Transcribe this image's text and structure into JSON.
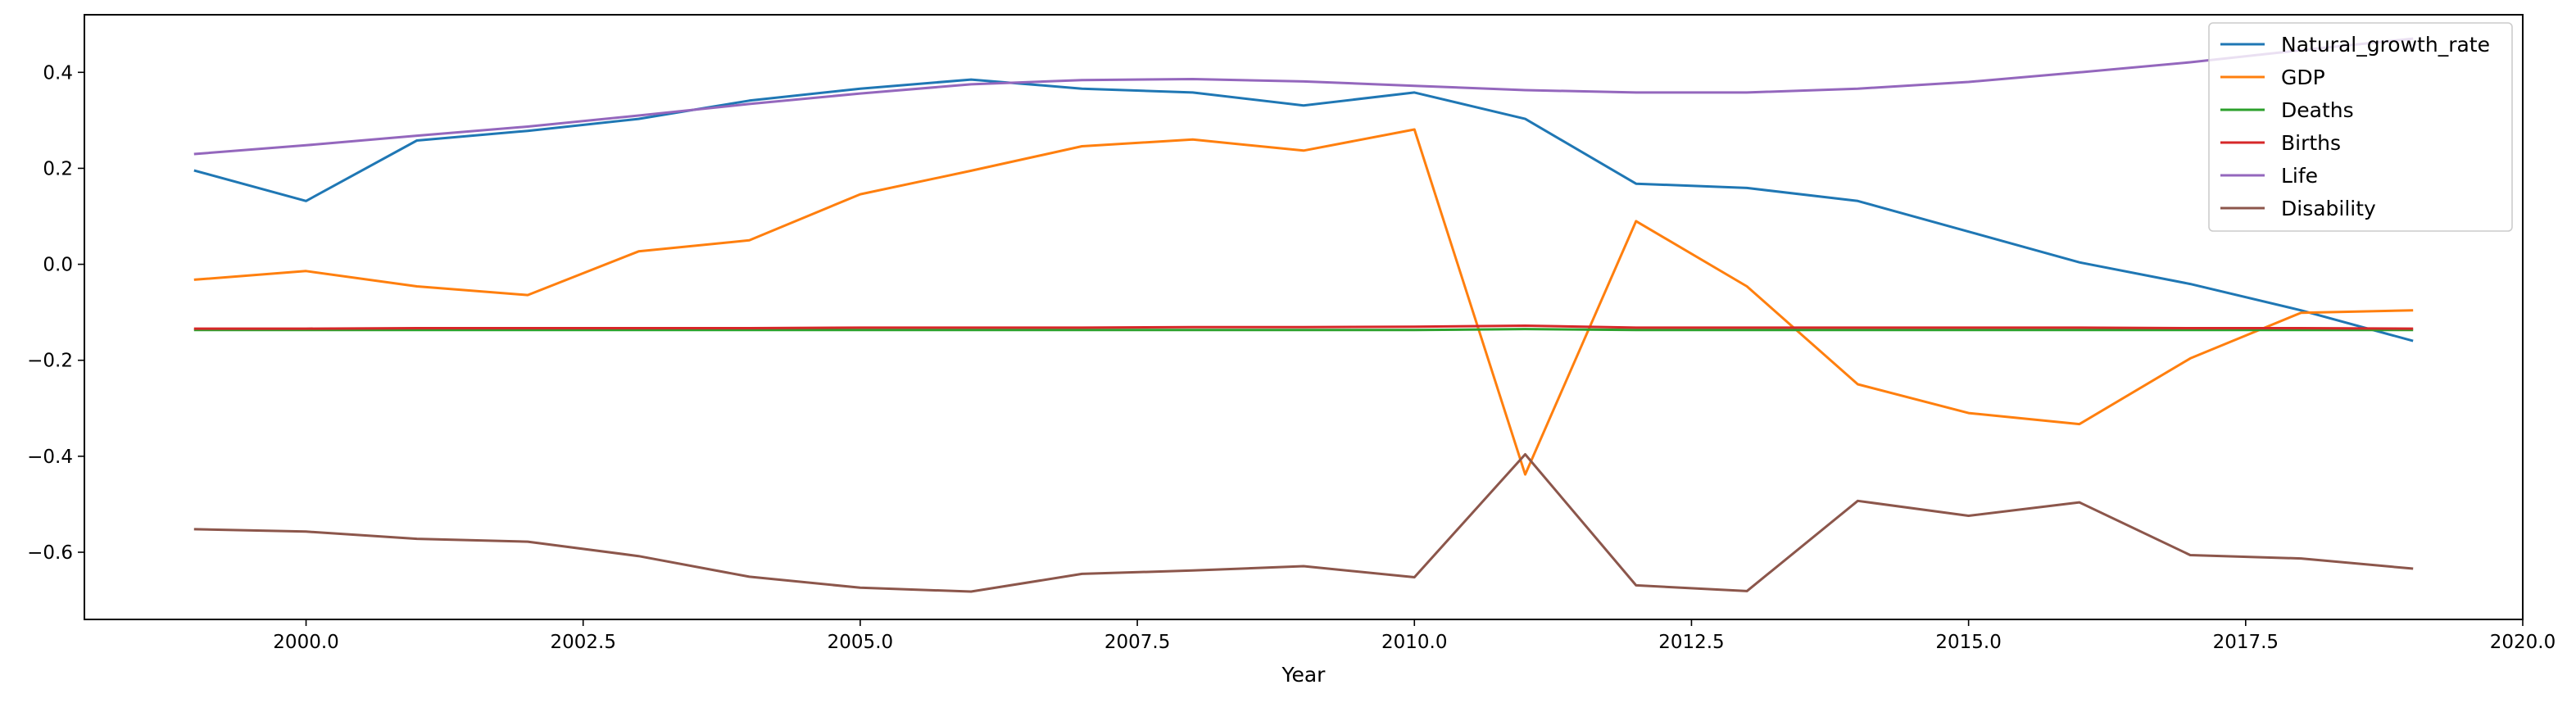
{
  "chart_data": {
    "type": "line",
    "title": "",
    "xlabel": "Year",
    "ylabel": "",
    "xlim": [
      1998.0,
      2020.0
    ],
    "ylim": [
      -0.74,
      0.52
    ],
    "xticks": [
      2000.0,
      2002.5,
      2005.0,
      2007.5,
      2010.0,
      2012.5,
      2015.0,
      2017.5,
      2020.0
    ],
    "xtick_labels": [
      "2000.0",
      "2002.5",
      "2005.0",
      "2007.5",
      "2010.0",
      "2012.5",
      "2015.0",
      "2017.5",
      "2020.0"
    ],
    "yticks": [
      -0.6,
      -0.4,
      -0.2,
      0.0,
      0.2,
      0.4
    ],
    "ytick_labels": [
      "−0.6",
      "−0.4",
      "−0.2",
      "0.0",
      "0.2",
      "0.4"
    ],
    "grid": false,
    "legend_position": "top-right",
    "x": [
      1999,
      2000,
      2001,
      2002,
      2003,
      2004,
      2005,
      2006,
      2007,
      2008,
      2009,
      2010,
      2011,
      2012,
      2013,
      2014,
      2015,
      2016,
      2017,
      2018,
      2019
    ],
    "series": [
      {
        "name": "Natural_growth_rate",
        "color": "#1f77b4",
        "values": [
          0.195,
          0.132,
          0.258,
          0.278,
          0.303,
          0.341,
          0.366,
          0.385,
          0.366,
          0.358,
          0.331,
          0.358,
          0.303,
          0.168,
          0.159,
          0.132,
          0.068,
          0.004,
          -0.041,
          -0.096,
          -0.159
        ]
      },
      {
        "name": "GDP",
        "color": "#ff7f0e",
        "values": [
          -0.032,
          -0.014,
          -0.046,
          -0.064,
          0.027,
          0.05,
          0.146,
          0.195,
          0.246,
          0.26,
          0.237,
          0.281,
          -0.438,
          0.09,
          -0.046,
          -0.25,
          -0.31,
          -0.333,
          -0.196,
          -0.101,
          -0.096
        ]
      },
      {
        "name": "Deaths",
        "color": "#2ca02c",
        "values": [
          -0.137,
          -0.137,
          -0.137,
          -0.137,
          -0.137,
          -0.137,
          -0.137,
          -0.137,
          -0.137,
          -0.137,
          -0.137,
          -0.137,
          -0.135,
          -0.137,
          -0.137,
          -0.137,
          -0.137,
          -0.137,
          -0.137,
          -0.137,
          -0.137
        ]
      },
      {
        "name": "Births",
        "color": "#d62728",
        "values": [
          -0.134,
          -0.134,
          -0.133,
          -0.133,
          -0.133,
          -0.133,
          -0.132,
          -0.132,
          -0.132,
          -0.131,
          -0.131,
          -0.13,
          -0.128,
          -0.132,
          -0.132,
          -0.132,
          -0.132,
          -0.132,
          -0.133,
          -0.133,
          -0.134
        ]
      },
      {
        "name": "Life",
        "color": "#9467bd",
        "values": [
          0.23,
          0.248,
          0.268,
          0.287,
          0.31,
          0.334,
          0.356,
          0.375,
          0.384,
          0.386,
          0.381,
          0.372,
          0.363,
          0.358,
          0.358,
          0.366,
          0.38,
          0.4,
          0.421,
          0.446,
          0.47
        ]
      },
      {
        "name": "Disability",
        "color": "#8c564b",
        "values": [
          -0.552,
          -0.557,
          -0.572,
          -0.578,
          -0.608,
          -0.651,
          -0.674,
          -0.682,
          -0.645,
          -0.638,
          -0.629,
          -0.652,
          -0.396,
          -0.669,
          -0.681,
          -0.493,
          -0.524,
          -0.496,
          -0.606,
          -0.613,
          -0.634
        ]
      }
    ]
  }
}
